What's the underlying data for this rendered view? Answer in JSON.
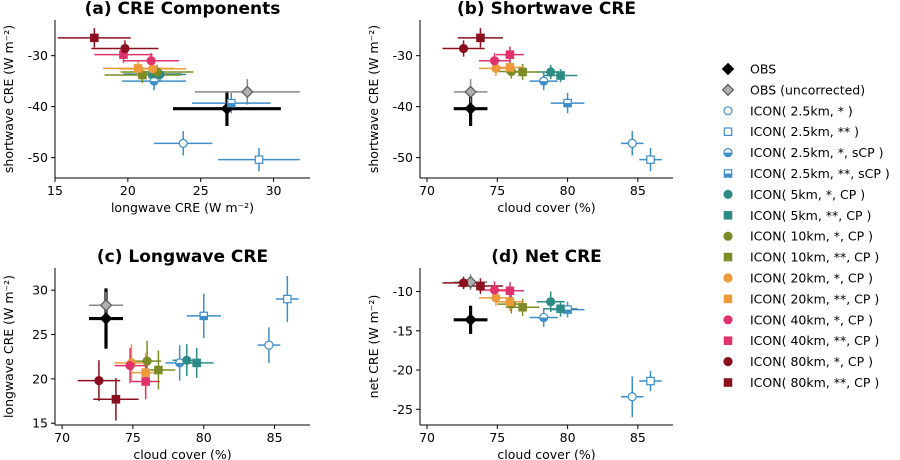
{
  "legend": [
    {
      "label": "OBS",
      "marker": "diamond",
      "fill": "#000000",
      "stroke": "#000000"
    },
    {
      "label": "OBS (uncorrected)",
      "marker": "diamond",
      "fill": "#b0b0b0",
      "stroke": "#555555"
    },
    {
      "label": "ICON( 2.5km, * )",
      "marker": "circle",
      "style": "open",
      "color": "#3d8ec9"
    },
    {
      "label": "ICON( 2.5km, ** )",
      "marker": "square",
      "style": "open",
      "color": "#3d8ec9"
    },
    {
      "label": "ICON( 2.5km, *,  sCP )",
      "marker": "circle",
      "style": "half",
      "color": "#3d8ec9"
    },
    {
      "label": "ICON( 2.5km, **, sCP )",
      "marker": "square",
      "style": "half",
      "color": "#3d8ec9"
    },
    {
      "label": "ICON( 5km, *,  CP )",
      "marker": "circle",
      "style": "filled",
      "color": "#2e8b86"
    },
    {
      "label": "ICON( 5km, **, CP )",
      "marker": "square",
      "style": "filled",
      "color": "#2e8b86"
    },
    {
      "label": "ICON( 10km, *,  CP )",
      "marker": "circle",
      "style": "filled",
      "color": "#7d8b25"
    },
    {
      "label": "ICON( 10km, **, CP )",
      "marker": "square",
      "style": "filled",
      "color": "#7d8b25"
    },
    {
      "label": "ICON( 20km, *,  CP )",
      "marker": "circle",
      "style": "filled",
      "color": "#ef9a3a"
    },
    {
      "label": "ICON( 20km, **, CP )",
      "marker": "square",
      "style": "filled",
      "color": "#ef9a3a"
    },
    {
      "label": "ICON( 40km, *,  CP )",
      "marker": "circle",
      "style": "filled",
      "color": "#e0336b"
    },
    {
      "label": "ICON( 40km, **, CP )",
      "marker": "square",
      "style": "filled",
      "color": "#e0336b"
    },
    {
      "label": "ICON( 80km, *,  CP )",
      "marker": "circle",
      "style": "filled",
      "color": "#8b0f1e"
    },
    {
      "label": "ICON( 80km, **, CP )",
      "marker": "square",
      "style": "filled",
      "color": "#8b0f1e"
    }
  ],
  "chart_data": [
    {
      "type": "scatter",
      "title": "(a) CRE Components",
      "xlabel": "longwave CRE (W m⁻²)",
      "ylabel": "shortwave CRE (W m⁻²)",
      "xlim": [
        15,
        32.5
      ],
      "ylim": [
        -54,
        -23
      ],
      "xticks": [
        15,
        20,
        25,
        30
      ],
      "yticks": [
        -30,
        -40,
        -50
      ],
      "points": [
        {
          "x": 26.8,
          "y": -40.4,
          "xe": 3.7,
          "ye": 3.4,
          "s": 0
        },
        {
          "x": 28.2,
          "y": -37.1,
          "xe": 3.6,
          "ye": 2.5,
          "s": 1
        },
        {
          "x": 23.8,
          "y": -47.2,
          "xe": 2.0,
          "ye": 2.4,
          "s": 2
        },
        {
          "x": 29.0,
          "y": -50.4,
          "xe": 2.8,
          "ye": 2.3,
          "s": 3
        },
        {
          "x": 21.8,
          "y": -35.0,
          "xe": 2.2,
          "ye": 1.8,
          "s": 4
        },
        {
          "x": 27.1,
          "y": -39.3,
          "xe": 2.7,
          "ye": 2.0,
          "s": 5
        },
        {
          "x": 22.2,
          "y": -33.7,
          "xe": 1.8,
          "ye": 1.4,
          "s": 6
        },
        {
          "x": 21.7,
          "y": -33.6,
          "xe": 2.0,
          "ye": 1.3,
          "s": 7
        },
        {
          "x": 22.0,
          "y": -33.2,
          "xe": 2.5,
          "ye": 1.4,
          "s": 8
        },
        {
          "x": 21.0,
          "y": -33.8,
          "xe": 2.6,
          "ye": 1.6,
          "s": 9
        },
        {
          "x": 21.7,
          "y": -32.6,
          "xe": 2.3,
          "ye": 1.5,
          "s": 10
        },
        {
          "x": 20.7,
          "y": -32.5,
          "xe": 2.4,
          "ye": 1.6,
          "s": 11
        },
        {
          "x": 21.6,
          "y": -31.0,
          "xe": 1.9,
          "ye": 1.5,
          "s": 12
        },
        {
          "x": 19.7,
          "y": -29.8,
          "xe": 2.0,
          "ye": 1.6,
          "s": 13
        },
        {
          "x": 19.8,
          "y": -28.6,
          "xe": 2.3,
          "ye": 1.6,
          "s": 14
        },
        {
          "x": 17.7,
          "y": -26.5,
          "xe": 2.5,
          "ye": 1.9,
          "s": 15
        }
      ]
    },
    {
      "type": "scatter",
      "title": "(b) Shortwave CRE",
      "xlabel": "cloud cover (%)",
      "ylabel": "shortwave CRE (W m⁻²)",
      "xlim": [
        69.5,
        87.5
      ],
      "ylim": [
        -54,
        -23
      ],
      "xticks": [
        70,
        75,
        80,
        85
      ],
      "yticks": [
        -30,
        -40,
        -50
      ],
      "points": [
        {
          "x": 73.1,
          "y": -40.4,
          "xe": 1.2,
          "ye": 3.4,
          "s": 0
        },
        {
          "x": 73.1,
          "y": -37.1,
          "xe": 1.2,
          "ye": 2.5,
          "s": 1
        },
        {
          "x": 84.6,
          "y": -47.2,
          "xe": 0.8,
          "ye": 2.4,
          "s": 2
        },
        {
          "x": 85.9,
          "y": -50.4,
          "xe": 0.8,
          "ye": 2.3,
          "s": 3
        },
        {
          "x": 78.3,
          "y": -35.0,
          "xe": 1.0,
          "ye": 1.8,
          "s": 4
        },
        {
          "x": 80.0,
          "y": -39.3,
          "xe": 1.2,
          "ye": 2.0,
          "s": 5
        },
        {
          "x": 78.8,
          "y": -33.2,
          "xe": 1.0,
          "ye": 1.4,
          "s": 6
        },
        {
          "x": 79.5,
          "y": -33.9,
          "xe": 1.2,
          "ye": 1.3,
          "s": 7
        },
        {
          "x": 76.0,
          "y": -33.1,
          "xe": 1.0,
          "ye": 1.4,
          "s": 8
        },
        {
          "x": 76.8,
          "y": -33.2,
          "xe": 1.2,
          "ye": 1.6,
          "s": 9
        },
        {
          "x": 74.9,
          "y": -32.5,
          "xe": 1.2,
          "ye": 1.5,
          "s": 10
        },
        {
          "x": 75.9,
          "y": -32.3,
          "xe": 1.0,
          "ye": 1.6,
          "s": 11
        },
        {
          "x": 74.8,
          "y": -31.0,
          "xe": 1.1,
          "ye": 1.5,
          "s": 12
        },
        {
          "x": 75.9,
          "y": -29.8,
          "xe": 1.0,
          "ye": 1.6,
          "s": 13
        },
        {
          "x": 72.6,
          "y": -28.6,
          "xe": 1.5,
          "ye": 1.6,
          "s": 14
        },
        {
          "x": 73.8,
          "y": -26.5,
          "xe": 1.6,
          "ye": 1.9,
          "s": 15
        }
      ]
    },
    {
      "type": "scatter",
      "title": "(c) Longwave CRE",
      "xlabel": "cloud cover (%)",
      "ylabel": "longwave CRE (W m⁻²)",
      "xlim": [
        69.5,
        87.5
      ],
      "ylim": [
        14.8,
        32.5
      ],
      "xticks": [
        70,
        75,
        80,
        85
      ],
      "yticks": [
        15,
        20,
        25,
        30
      ],
      "points": [
        {
          "x": 73.1,
          "y": 26.8,
          "xe": 1.2,
          "ye": 3.4,
          "s": 0
        },
        {
          "x": 73.1,
          "y": 28.3,
          "xe": 1.2,
          "ye": 1.5,
          "s": 1
        },
        {
          "x": 84.6,
          "y": 23.8,
          "xe": 0.8,
          "ye": 2.0,
          "s": 2
        },
        {
          "x": 85.9,
          "y": 29.0,
          "xe": 0.8,
          "ye": 2.6,
          "s": 3
        },
        {
          "x": 78.3,
          "y": 21.8,
          "xe": 1.0,
          "ye": 2.0,
          "s": 4
        },
        {
          "x": 80.0,
          "y": 27.1,
          "xe": 1.2,
          "ye": 2.5,
          "s": 5
        },
        {
          "x": 78.8,
          "y": 22.1,
          "xe": 1.0,
          "ye": 1.8,
          "s": 6
        },
        {
          "x": 79.5,
          "y": 21.8,
          "xe": 1.2,
          "ye": 1.7,
          "s": 7
        },
        {
          "x": 76.0,
          "y": 22.0,
          "xe": 1.0,
          "ye": 2.3,
          "s": 8
        },
        {
          "x": 76.8,
          "y": 21.0,
          "xe": 1.2,
          "ye": 2.2,
          "s": 9
        },
        {
          "x": 74.9,
          "y": 21.8,
          "xe": 1.2,
          "ye": 2.1,
          "s": 10
        },
        {
          "x": 75.9,
          "y": 20.7,
          "xe": 1.0,
          "ye": 2.2,
          "s": 11
        },
        {
          "x": 74.8,
          "y": 21.5,
          "xe": 1.1,
          "ye": 2.0,
          "s": 12
        },
        {
          "x": 75.9,
          "y": 19.7,
          "xe": 1.0,
          "ye": 2.0,
          "s": 13
        },
        {
          "x": 72.6,
          "y": 19.8,
          "xe": 1.5,
          "ye": 2.3,
          "s": 14
        },
        {
          "x": 73.8,
          "y": 17.7,
          "xe": 1.6,
          "ye": 2.4,
          "s": 15
        }
      ]
    },
    {
      "type": "scatter",
      "title": "(d) Net CRE",
      "xlabel": "cloud cover (%)",
      "ylabel": "net CRE (W m⁻²)",
      "xlim": [
        69.5,
        87.5
      ],
      "ylim": [
        -27,
        -7
      ],
      "xticks": [
        70,
        75,
        80,
        85
      ],
      "yticks": [
        -10,
        -15,
        -20,
        -25
      ],
      "points": [
        {
          "x": 73.1,
          "y": -13.6,
          "xe": 1.2,
          "ye": 1.8,
          "s": 0
        },
        {
          "x": 73.1,
          "y": -8.8,
          "xe": 1.2,
          "ye": 1.0,
          "s": 1
        },
        {
          "x": 84.6,
          "y": -23.4,
          "xe": 0.8,
          "ye": 2.6,
          "s": 2
        },
        {
          "x": 85.9,
          "y": -21.4,
          "xe": 0.8,
          "ye": 1.3,
          "s": 3
        },
        {
          "x": 78.3,
          "y": -13.3,
          "xe": 1.0,
          "ye": 1.2,
          "s": 4
        },
        {
          "x": 80.0,
          "y": -12.3,
          "xe": 1.2,
          "ye": 1.0,
          "s": 5
        },
        {
          "x": 78.8,
          "y": -11.3,
          "xe": 1.0,
          "ye": 1.3,
          "s": 6
        },
        {
          "x": 79.5,
          "y": -12.2,
          "xe": 1.2,
          "ye": 1.0,
          "s": 7
        },
        {
          "x": 76.0,
          "y": -11.6,
          "xe": 1.0,
          "ye": 1.2,
          "s": 8
        },
        {
          "x": 76.8,
          "y": -12.0,
          "xe": 1.2,
          "ye": 1.1,
          "s": 9
        },
        {
          "x": 74.9,
          "y": -10.8,
          "xe": 1.2,
          "ye": 1.0,
          "s": 10
        },
        {
          "x": 75.9,
          "y": -11.3,
          "xe": 1.0,
          "ye": 1.2,
          "s": 11
        },
        {
          "x": 74.8,
          "y": -9.8,
          "xe": 1.1,
          "ye": 1.1,
          "s": 12
        },
        {
          "x": 75.9,
          "y": -9.9,
          "xe": 1.0,
          "ye": 1.1,
          "s": 13
        },
        {
          "x": 72.6,
          "y": -8.9,
          "xe": 1.5,
          "ye": 0.8,
          "s": 14
        },
        {
          "x": 73.8,
          "y": -9.3,
          "xe": 1.6,
          "ye": 1.0,
          "s": 15
        }
      ]
    }
  ]
}
